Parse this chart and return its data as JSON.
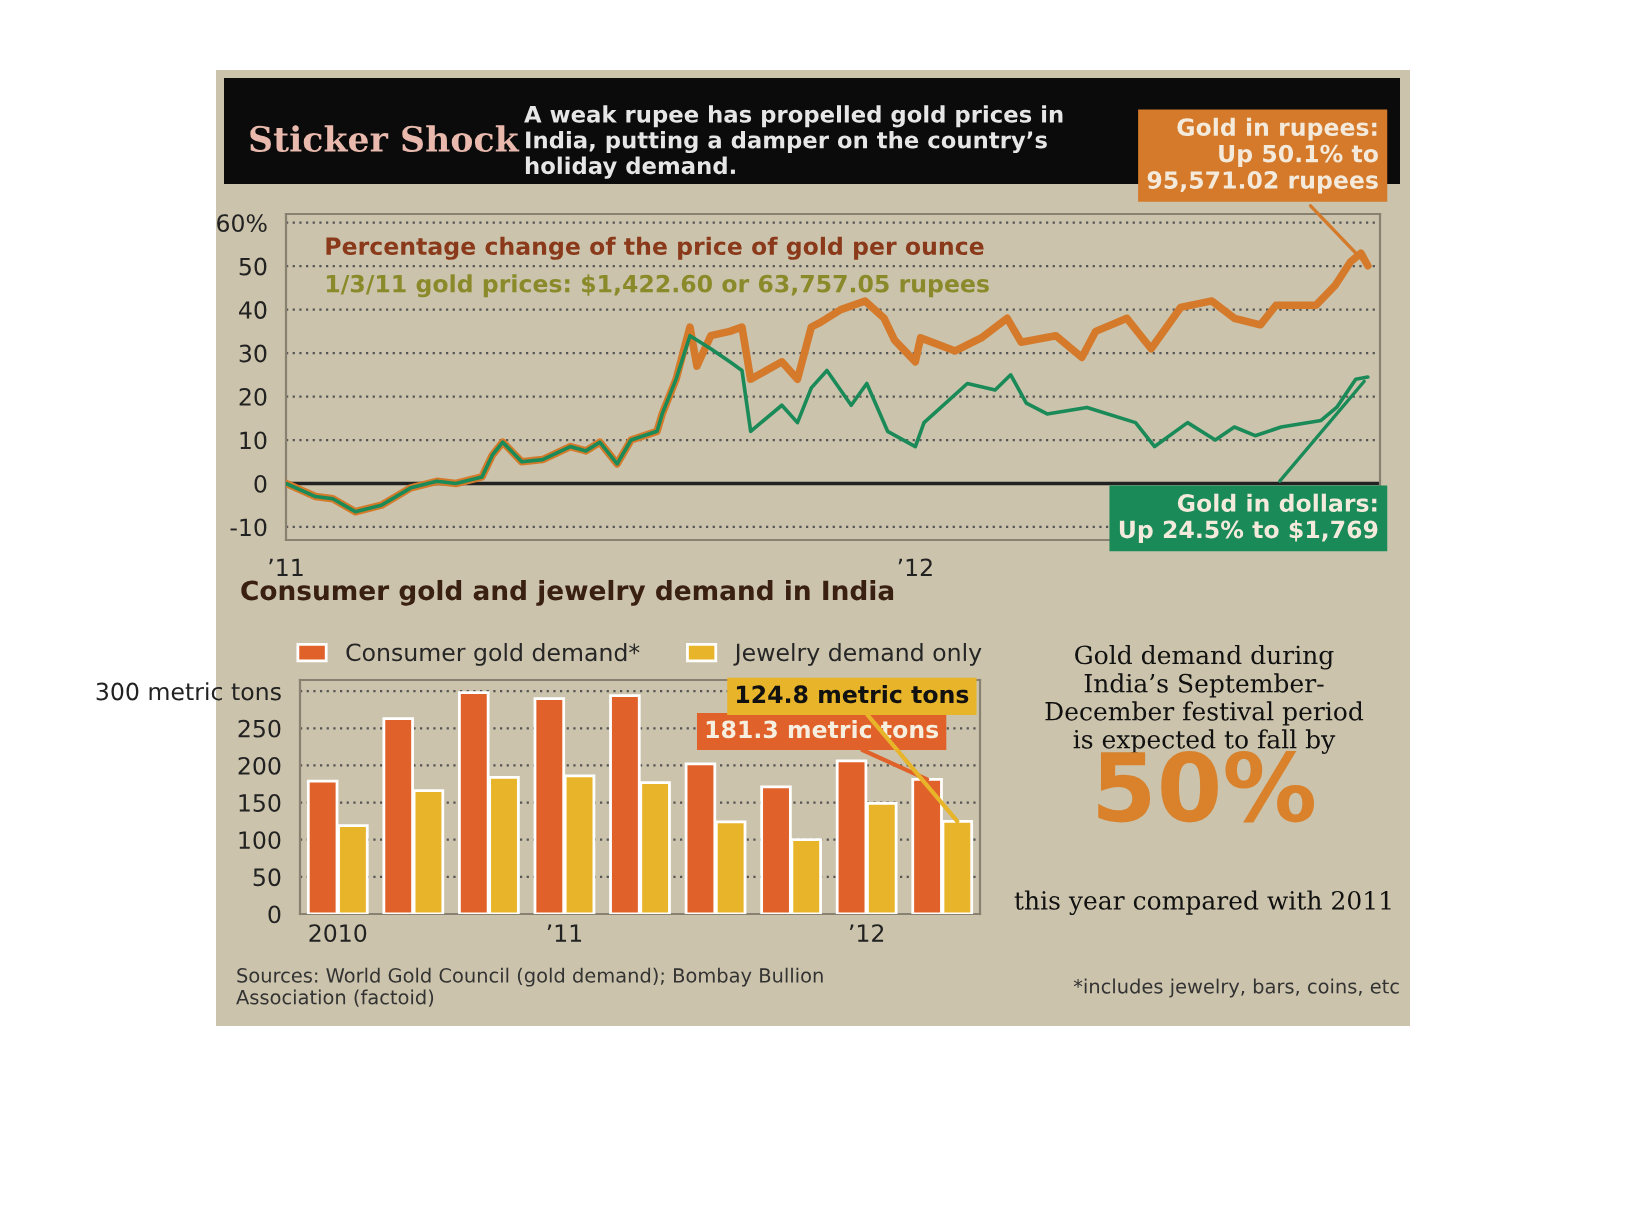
{
  "chart_data": [
    {
      "type": "line",
      "title": "Sticker Shock",
      "subtitle": "A weak rupee has propelled gold prices in India, putting a damper on the country’s holiday demand.",
      "xlim": [
        "2011-01-03",
        "2012-09-25"
      ],
      "xticks": [
        {
          "value": "2011-01-03",
          "label": "’11"
        },
        {
          "value": "2012-01-01",
          "label": "’12"
        }
      ],
      "ylim": [
        -13,
        62
      ],
      "yticks": [
        -10,
        0,
        10,
        20,
        30,
        40,
        50,
        {
          "value": 60,
          "label": "60%"
        }
      ],
      "grid": "y",
      "line_style": "solid",
      "ref_lines": [
        {
          "axis": "y",
          "value": 0,
          "color": "#222222"
        }
      ],
      "series": [
        {
          "color": "#d47a2a",
          "x": [
            "2011-01-03",
            "2011-01-20",
            "2011-01-30",
            "2011-02-12",
            "2011-02-27",
            "2011-03-16",
            "2011-03-31",
            "2011-04-11",
            "2011-04-26",
            "2011-05-02",
            "2011-05-08",
            "2011-05-19",
            "2011-05-31",
            "2011-06-16",
            "2011-06-25",
            "2011-07-03",
            "2011-07-13",
            "2011-07-21",
            "2011-08-05",
            "2011-08-08",
            "2011-08-16",
            "2011-08-24",
            "2011-08-28",
            "2011-09-05",
            "2011-09-16",
            "2011-09-23",
            "2011-09-28",
            "2011-10-16",
            "2011-10-25",
            "2011-11-02",
            "2011-11-07",
            "2011-11-19",
            "2011-12-03",
            "2011-12-14",
            "2011-12-20",
            "2012-01-01",
            "2012-01-04",
            "2012-01-24",
            "2012-02-08",
            "2012-02-23",
            "2012-03-02",
            "2012-03-22",
            "2012-04-06",
            "2012-04-14",
            "2012-05-02",
            "2012-05-16",
            "2012-06-02",
            "2012-06-20",
            "2012-07-03",
            "2012-07-18",
            "2012-07-27",
            "2012-08-19",
            "2012-08-30",
            "2012-09-08",
            "2012-09-14",
            "2012-09-18"
          ],
          "values": [
            0,
            -3,
            -3.5,
            -6.5,
            -5,
            -1,
            0.5,
            0,
            1.5,
            6.5,
            9.5,
            5,
            5.5,
            8.5,
            7.5,
            9.5,
            4.5,
            10,
            12,
            16,
            24,
            36,
            27,
            34,
            35,
            36,
            24,
            28,
            24,
            36,
            37,
            40,
            42,
            38,
            33,
            28,
            33.5,
            30.5,
            33.5,
            38,
            32.5,
            34,
            29,
            35,
            38,
            31,
            40.5,
            42,
            38,
            36.5,
            41,
            41,
            45.5,
            51,
            53,
            50.1
          ]
        },
        {
          "color": "#1a8a58",
          "x": [
            "2011-01-03",
            "2011-01-20",
            "2011-01-30",
            "2011-02-12",
            "2011-02-27",
            "2011-03-16",
            "2011-03-31",
            "2011-04-11",
            "2011-04-26",
            "2011-05-02",
            "2011-05-08",
            "2011-05-19",
            "2011-05-31",
            "2011-06-16",
            "2011-06-25",
            "2011-07-03",
            "2011-07-13",
            "2011-07-21",
            "2011-08-05",
            "2011-08-08",
            "2011-08-16",
            "2011-08-24",
            "2011-09-05",
            "2011-09-16",
            "2011-09-23",
            "2011-09-28",
            "2011-10-16",
            "2011-10-25",
            "2011-11-02",
            "2011-11-11",
            "2011-11-25",
            "2011-12-04",
            "2011-12-16",
            "2012-01-01",
            "2012-01-06",
            "2012-01-31",
            "2012-02-16",
            "2012-02-25",
            "2012-03-05",
            "2012-03-17",
            "2012-04-09",
            "2012-05-07",
            "2012-05-18",
            "2012-06-06",
            "2012-06-22",
            "2012-07-03",
            "2012-07-15",
            "2012-07-30",
            "2012-08-22",
            "2012-08-31",
            "2012-09-11",
            "2012-09-18"
          ],
          "values": [
            0,
            -3,
            -3.5,
            -6.5,
            -5,
            -1,
            0.5,
            0,
            1.5,
            6.5,
            9.5,
            5,
            5.5,
            8.5,
            7.5,
            9.5,
            4.5,
            10,
            12,
            16,
            24,
            34,
            31,
            28,
            26,
            12,
            18,
            14,
            22,
            26,
            18,
            23,
            12,
            8.5,
            14,
            23,
            21.5,
            25,
            18.5,
            16,
            17.5,
            14,
            8.5,
            14,
            10,
            13,
            11,
            13,
            14.5,
            17.5,
            24,
            24.5
          ]
        }
      ],
      "annotations": [
        "Percentage change of the price of gold per ounce",
        "1/3/11 gold prices: $1,422.60 or 63,757.05 rupees",
        {
          "text": "Gold in rupees:\nUp 50.1% to\n95,571.02 rupees",
          "x": "2012-09-18",
          "y": 50.1
        },
        {
          "text": "Gold in dollars:\nUp 24.5% to $1,769",
          "x": "2012-09-18",
          "y": 24.5
        }
      ]
    },
    {
      "type": "bar",
      "title": "Consumer gold and jewelry demand in India",
      "categories": [
        "2010",
        null,
        null,
        "’11",
        null,
        null,
        null,
        "’12",
        null
      ],
      "ylim": [
        0,
        315
      ],
      "yticks": [
        0,
        50,
        100,
        150,
        200,
        250,
        {
          "value": 300,
          "label": "300 metric tons"
        }
      ],
      "grid": "y",
      "legend": "top",
      "series": [
        {
          "name": "Consumer gold demand*",
          "color": "#e0622a",
          "values": [
            179,
            263,
            298,
            290,
            294,
            202,
            171,
            206,
            181.3
          ],
          "value_labels": [
            null,
            null,
            null,
            null,
            null,
            null,
            null,
            null,
            "181.3 metric tons"
          ]
        },
        {
          "name": "Jewelry demand only",
          "color": "#e8b52a",
          "values": [
            119,
            166,
            184,
            186,
            177,
            124,
            100,
            149,
            124.8
          ],
          "value_labels": [
            null,
            null,
            null,
            null,
            null,
            null,
            null,
            null,
            "124.8 metric tons"
          ]
        }
      ],
      "annotations": [
        "Sources: World Gold Council (gold demand); Bombay Bullion Association (factoid)",
        "*includes jewelry, bars, coins, etc"
      ]
    },
    {
      "type": "other",
      "subtitle": "Gold demand during India’s September- December festival period is expected to fall by",
      "value_labels": [
        "50%"
      ],
      "color": "#d9822b",
      "annotations": [
        "this year compared with 2011"
      ]
    }
  ]
}
